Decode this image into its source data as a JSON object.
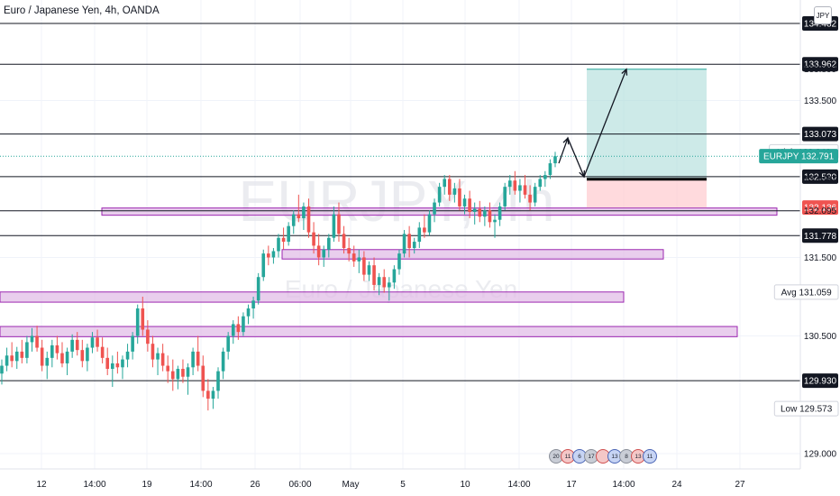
{
  "header": {
    "title": "Euro / Japanese Yen, 4h, OANDA",
    "currency": "JPY"
  },
  "watermark": {
    "symbol": "EURJPY, 4h",
    "name": "Euro / Japanese Yen"
  },
  "chart_data": {
    "type": "candlestick",
    "symbol": "EURJPY",
    "interval": "4h",
    "ylim": [
      128.8,
      134.6
    ],
    "x_ticks": [
      "12",
      "14:00",
      "19",
      "14:00",
      "26",
      "06:00",
      "May",
      "5",
      "10",
      "14:00",
      "17",
      "14:00",
      "24",
      "27"
    ],
    "price_labels": [
      {
        "value": "134.482",
        "style": "black"
      },
      {
        "value": "133.962",
        "style": "black"
      },
      {
        "value": "133.899",
        "style": "plain"
      },
      {
        "value": "133.500",
        "style": "plain"
      },
      {
        "value": "133.073",
        "style": "black"
      },
      {
        "value": "132.846",
        "prefix": "High",
        "style": "plain"
      },
      {
        "value": "132.791",
        "prefix": "EURJPY",
        "style": "current"
      },
      {
        "value": "132.530",
        "style": "black"
      },
      {
        "value": "132.497",
        "style": "plain"
      },
      {
        "value": "132.136",
        "style": "stop"
      },
      {
        "value": "132.095",
        "style": "plain"
      },
      {
        "value": "131.778",
        "style": "black"
      },
      {
        "value": "131.500",
        "style": "plain"
      },
      {
        "value": "131.059",
        "prefix": "Avg",
        "style": "plain"
      },
      {
        "value": "130.500",
        "style": "plain"
      },
      {
        "value": "129.930",
        "style": "black"
      },
      {
        "value": "129.573",
        "prefix": "Low",
        "style": "plain"
      },
      {
        "value": "129.000",
        "style": "plain"
      }
    ],
    "horizontal_levels": [
      134.482,
      133.962,
      133.073,
      132.53,
      132.095,
      131.778,
      129.93
    ],
    "zones": [
      {
        "from_x": "19",
        "top": 132.13,
        "bottom": 132.04
      },
      {
        "from_x": "06:00",
        "top": 131.6,
        "bottom": 131.48
      },
      {
        "from_x": "12",
        "top": 131.06,
        "bottom": 130.93
      },
      {
        "from_x": "12",
        "top": 130.62,
        "bottom": 130.49
      }
    ],
    "position": {
      "type": "long",
      "entry": 132.497,
      "target": 133.899,
      "stop": 132.136
    },
    "candles": [
      {
        "o": 130.02,
        "h": 130.2,
        "l": 129.88,
        "c": 130.12
      },
      {
        "o": 130.12,
        "h": 130.35,
        "l": 130.05,
        "c": 130.25
      },
      {
        "o": 130.25,
        "h": 130.42,
        "l": 130.1,
        "c": 130.18
      },
      {
        "o": 130.18,
        "h": 130.36,
        "l": 130.08,
        "c": 130.3
      },
      {
        "o": 130.3,
        "h": 130.45,
        "l": 130.15,
        "c": 130.22
      },
      {
        "o": 130.22,
        "h": 130.5,
        "l": 130.15,
        "c": 130.42
      },
      {
        "o": 130.42,
        "h": 130.6,
        "l": 130.3,
        "c": 130.5
      },
      {
        "o": 130.5,
        "h": 130.63,
        "l": 130.3,
        "c": 130.35
      },
      {
        "o": 130.35,
        "h": 130.45,
        "l": 130.05,
        "c": 130.12
      },
      {
        "o": 130.12,
        "h": 130.3,
        "l": 129.95,
        "c": 130.22
      },
      {
        "o": 130.22,
        "h": 130.45,
        "l": 130.1,
        "c": 130.38
      },
      {
        "o": 130.38,
        "h": 130.5,
        "l": 130.2,
        "c": 130.28
      },
      {
        "o": 130.28,
        "h": 130.42,
        "l": 130.1,
        "c": 130.15
      },
      {
        "o": 130.15,
        "h": 130.35,
        "l": 130.0,
        "c": 130.3
      },
      {
        "o": 130.3,
        "h": 130.52,
        "l": 130.22,
        "c": 130.45
      },
      {
        "o": 130.45,
        "h": 130.55,
        "l": 130.25,
        "c": 130.32
      },
      {
        "o": 130.32,
        "h": 130.45,
        "l": 130.1,
        "c": 130.18
      },
      {
        "o": 130.18,
        "h": 130.4,
        "l": 130.05,
        "c": 130.35
      },
      {
        "o": 130.35,
        "h": 130.55,
        "l": 130.28,
        "c": 130.48
      },
      {
        "o": 130.48,
        "h": 130.58,
        "l": 130.3,
        "c": 130.36
      },
      {
        "o": 130.36,
        "h": 130.48,
        "l": 130.15,
        "c": 130.22
      },
      {
        "o": 130.22,
        "h": 130.35,
        "l": 130.0,
        "c": 130.08
      },
      {
        "o": 130.08,
        "h": 130.25,
        "l": 129.85,
        "c": 130.15
      },
      {
        "o": 130.15,
        "h": 130.3,
        "l": 130.02,
        "c": 130.1
      },
      {
        "o": 130.1,
        "h": 130.25,
        "l": 129.95,
        "c": 130.2
      },
      {
        "o": 130.2,
        "h": 130.4,
        "l": 130.1,
        "c": 130.3
      },
      {
        "o": 130.3,
        "h": 130.55,
        "l": 130.2,
        "c": 130.5
      },
      {
        "o": 130.5,
        "h": 130.9,
        "l": 130.4,
        "c": 130.85
      },
      {
        "o": 130.85,
        "h": 131.0,
        "l": 130.5,
        "c": 130.58
      },
      {
        "o": 130.58,
        "h": 130.7,
        "l": 130.3,
        "c": 130.4
      },
      {
        "o": 130.4,
        "h": 130.5,
        "l": 130.1,
        "c": 130.2
      },
      {
        "o": 130.2,
        "h": 130.35,
        "l": 130.0,
        "c": 130.28
      },
      {
        "o": 130.28,
        "h": 130.4,
        "l": 130.05,
        "c": 130.12
      },
      {
        "o": 130.12,
        "h": 130.25,
        "l": 129.9,
        "c": 130.05
      },
      {
        "o": 130.05,
        "h": 130.2,
        "l": 129.8,
        "c": 129.95
      },
      {
        "o": 129.95,
        "h": 130.12,
        "l": 129.82,
        "c": 130.08
      },
      {
        "o": 130.08,
        "h": 130.2,
        "l": 129.9,
        "c": 129.98
      },
      {
        "o": 129.98,
        "h": 130.15,
        "l": 129.75,
        "c": 130.1
      },
      {
        "o": 130.1,
        "h": 130.35,
        "l": 130.0,
        "c": 130.3
      },
      {
        "o": 130.3,
        "h": 130.5,
        "l": 130.05,
        "c": 130.12
      },
      {
        "o": 130.12,
        "h": 130.25,
        "l": 129.72,
        "c": 129.8
      },
      {
        "o": 129.8,
        "h": 129.95,
        "l": 129.55,
        "c": 129.7
      },
      {
        "o": 129.7,
        "h": 129.85,
        "l": 129.57,
        "c": 129.8
      },
      {
        "o": 129.8,
        "h": 130.1,
        "l": 129.7,
        "c": 130.05
      },
      {
        "o": 130.05,
        "h": 130.35,
        "l": 129.95,
        "c": 130.3
      },
      {
        "o": 130.3,
        "h": 130.55,
        "l": 130.2,
        "c": 130.5
      },
      {
        "o": 130.5,
        "h": 130.7,
        "l": 130.4,
        "c": 130.65
      },
      {
        "o": 130.65,
        "h": 130.75,
        "l": 130.45,
        "c": 130.55
      },
      {
        "o": 130.55,
        "h": 130.8,
        "l": 130.5,
        "c": 130.75
      },
      {
        "o": 130.75,
        "h": 130.9,
        "l": 130.65,
        "c": 130.85
      },
      {
        "o": 130.85,
        "h": 131.0,
        "l": 130.72,
        "c": 130.95
      },
      {
        "o": 130.95,
        "h": 131.3,
        "l": 130.9,
        "c": 131.25
      },
      {
        "o": 131.25,
        "h": 131.6,
        "l": 131.2,
        "c": 131.55
      },
      {
        "o": 131.55,
        "h": 131.65,
        "l": 131.4,
        "c": 131.5
      },
      {
        "o": 131.5,
        "h": 131.62,
        "l": 131.42,
        "c": 131.58
      },
      {
        "o": 131.58,
        "h": 131.8,
        "l": 131.5,
        "c": 131.75
      },
      {
        "o": 131.75,
        "h": 131.88,
        "l": 131.6,
        "c": 131.7
      },
      {
        "o": 131.7,
        "h": 131.95,
        "l": 131.65,
        "c": 131.9
      },
      {
        "o": 131.9,
        "h": 132.1,
        "l": 131.8,
        "c": 132.05
      },
      {
        "o": 132.05,
        "h": 132.3,
        "l": 131.95,
        "c": 132.0
      },
      {
        "o": 132.0,
        "h": 132.2,
        "l": 131.85,
        "c": 132.15
      },
      {
        "o": 132.15,
        "h": 132.25,
        "l": 131.75,
        "c": 131.82
      },
      {
        "o": 131.82,
        "h": 131.95,
        "l": 131.55,
        "c": 131.65
      },
      {
        "o": 131.65,
        "h": 131.8,
        "l": 131.4,
        "c": 131.5
      },
      {
        "o": 131.5,
        "h": 131.65,
        "l": 131.38,
        "c": 131.6
      },
      {
        "o": 131.6,
        "h": 131.8,
        "l": 131.5,
        "c": 131.75
      },
      {
        "o": 131.75,
        "h": 132.15,
        "l": 131.7,
        "c": 132.05
      },
      {
        "o": 132.05,
        "h": 132.2,
        "l": 131.7,
        "c": 131.8
      },
      {
        "o": 131.8,
        "h": 131.9,
        "l": 131.55,
        "c": 131.62
      },
      {
        "o": 131.62,
        "h": 131.75,
        "l": 131.45,
        "c": 131.55
      },
      {
        "o": 131.55,
        "h": 131.65,
        "l": 131.38,
        "c": 131.45
      },
      {
        "o": 131.45,
        "h": 131.6,
        "l": 131.3,
        "c": 131.5
      },
      {
        "o": 131.5,
        "h": 131.58,
        "l": 131.2,
        "c": 131.28
      },
      {
        "o": 131.28,
        "h": 131.45,
        "l": 131.2,
        "c": 131.4
      },
      {
        "o": 131.4,
        "h": 131.5,
        "l": 131.08,
        "c": 131.15
      },
      {
        "o": 131.15,
        "h": 131.3,
        "l": 131.02,
        "c": 131.25
      },
      {
        "o": 131.25,
        "h": 131.35,
        "l": 131.05,
        "c": 131.12
      },
      {
        "o": 131.12,
        "h": 131.25,
        "l": 130.95,
        "c": 131.18
      },
      {
        "o": 131.18,
        "h": 131.4,
        "l": 131.1,
        "c": 131.35
      },
      {
        "o": 131.35,
        "h": 131.6,
        "l": 131.28,
        "c": 131.55
      },
      {
        "o": 131.55,
        "h": 131.85,
        "l": 131.5,
        "c": 131.8
      },
      {
        "o": 131.8,
        "h": 131.9,
        "l": 131.5,
        "c": 131.62
      },
      {
        "o": 131.62,
        "h": 131.75,
        "l": 131.55,
        "c": 131.7
      },
      {
        "o": 131.7,
        "h": 131.95,
        "l": 131.62,
        "c": 131.88
      },
      {
        "o": 131.88,
        "h": 132.05,
        "l": 131.75,
        "c": 131.82
      },
      {
        "o": 131.82,
        "h": 132.1,
        "l": 131.78,
        "c": 132.05
      },
      {
        "o": 132.05,
        "h": 132.25,
        "l": 131.95,
        "c": 132.2
      },
      {
        "o": 132.2,
        "h": 132.45,
        "l": 132.15,
        "c": 132.4
      },
      {
        "o": 132.4,
        "h": 132.55,
        "l": 132.3,
        "c": 132.5
      },
      {
        "o": 132.5,
        "h": 132.55,
        "l": 132.22,
        "c": 132.3
      },
      {
        "o": 132.3,
        "h": 132.45,
        "l": 132.2,
        "c": 132.38
      },
      {
        "o": 132.38,
        "h": 132.5,
        "l": 132.1,
        "c": 132.15
      },
      {
        "o": 132.15,
        "h": 132.3,
        "l": 132.05,
        "c": 132.25
      },
      {
        "o": 132.25,
        "h": 132.35,
        "l": 132.0,
        "c": 132.08
      },
      {
        "o": 132.08,
        "h": 132.2,
        "l": 131.92,
        "c": 132.12
      },
      {
        "o": 132.12,
        "h": 132.22,
        "l": 131.95,
        "c": 132.02
      },
      {
        "o": 132.02,
        "h": 132.15,
        "l": 131.9,
        "c": 132.1
      },
      {
        "o": 132.1,
        "h": 132.2,
        "l": 131.88,
        "c": 131.95
      },
      {
        "o": 131.95,
        "h": 132.05,
        "l": 131.75,
        "c": 131.98
      },
      {
        "o": 131.98,
        "h": 132.2,
        "l": 131.9,
        "c": 132.15
      },
      {
        "o": 132.15,
        "h": 132.45,
        "l": 132.1,
        "c": 132.4
      },
      {
        "o": 132.4,
        "h": 132.55,
        "l": 132.3,
        "c": 132.48
      },
      {
        "o": 132.48,
        "h": 132.6,
        "l": 132.3,
        "c": 132.35
      },
      {
        "o": 132.35,
        "h": 132.5,
        "l": 132.2,
        "c": 132.42
      },
      {
        "o": 132.42,
        "h": 132.55,
        "l": 132.25,
        "c": 132.3
      },
      {
        "o": 132.3,
        "h": 132.42,
        "l": 132.1,
        "c": 132.2
      },
      {
        "o": 132.2,
        "h": 132.45,
        "l": 132.15,
        "c": 132.4
      },
      {
        "o": 132.4,
        "h": 132.55,
        "l": 132.35,
        "c": 132.5
      },
      {
        "o": 132.5,
        "h": 132.6,
        "l": 132.4,
        "c": 132.55
      },
      {
        "o": 132.55,
        "h": 132.75,
        "l": 132.5,
        "c": 132.7
      },
      {
        "o": 132.7,
        "h": 132.846,
        "l": 132.65,
        "c": 132.79
      }
    ]
  },
  "events": [
    "20",
    "11",
    "6",
    "17",
    "",
    "13",
    "8",
    "13",
    "11"
  ]
}
